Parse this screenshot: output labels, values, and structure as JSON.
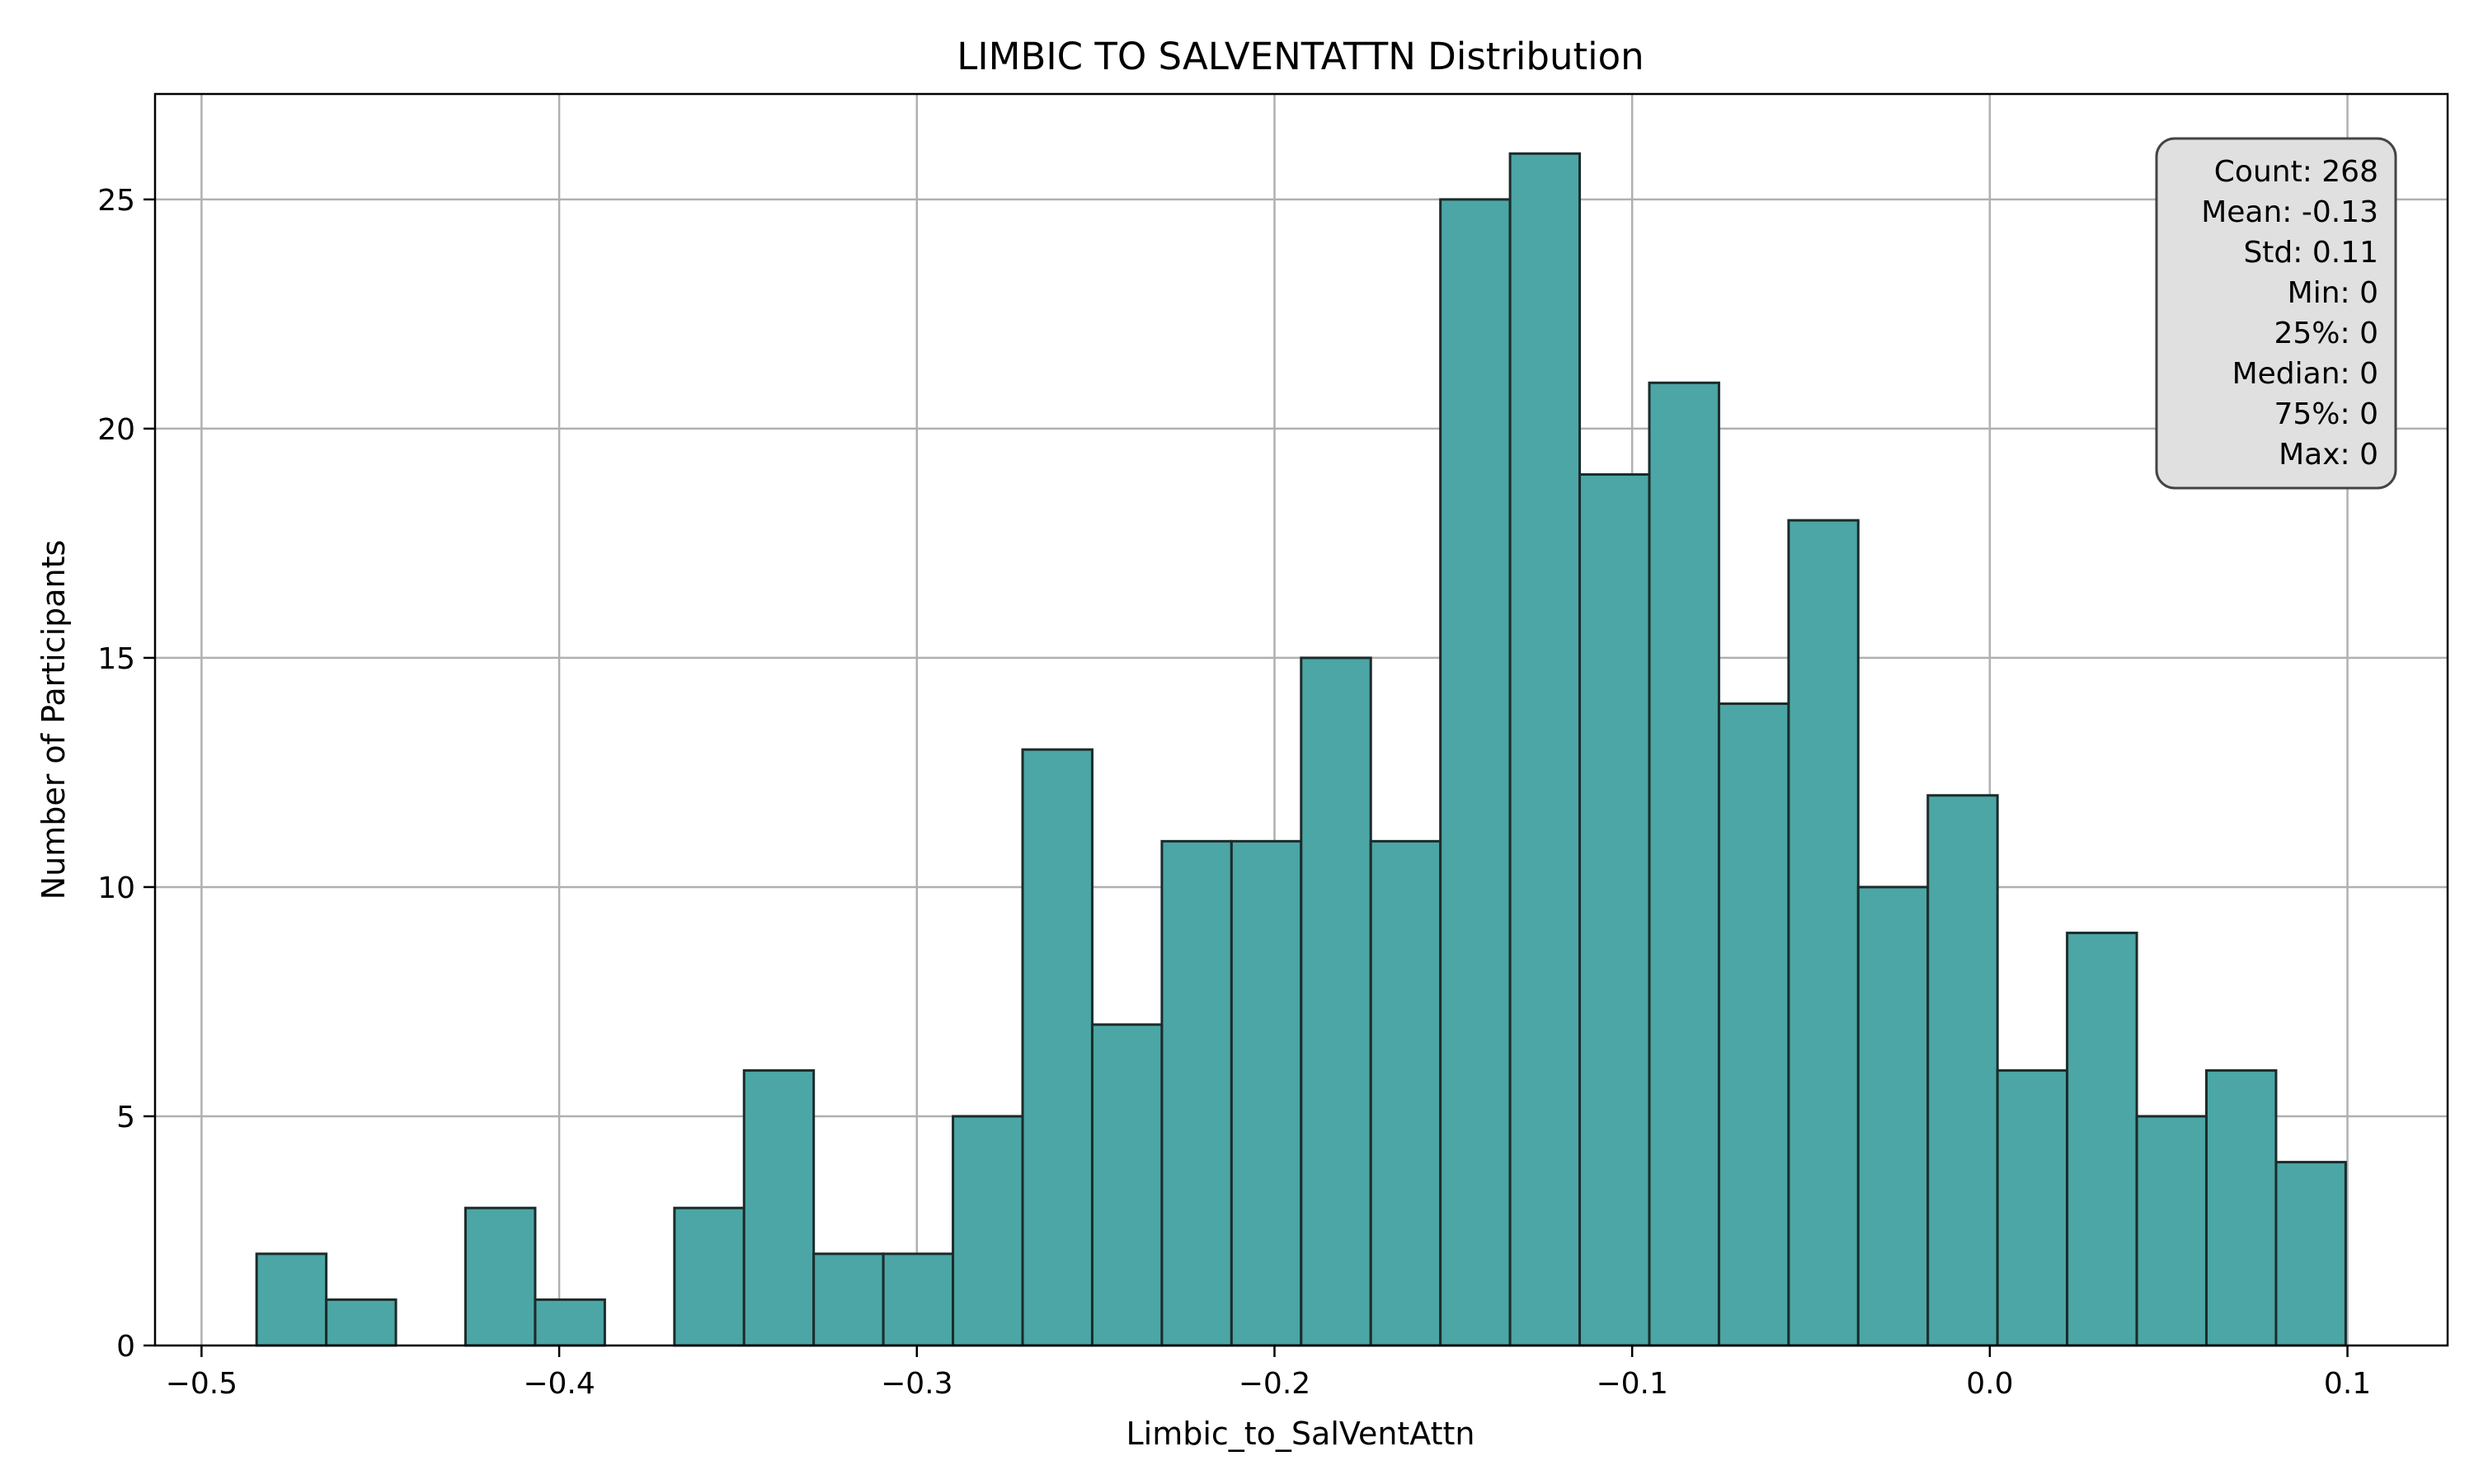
{
  "chart_data": {
    "type": "bar",
    "title": "LIMBIC TO SALVENTATTN Distribution",
    "xlabel": "Limbic_to_SalVentAttn",
    "ylabel": "Number of Participants",
    "xlim": [
      -0.513,
      0.128
    ],
    "ylim": [
      0,
      27.3
    ],
    "grid": true,
    "bar_color": "#4ca6a6",
    "edge_color": "#1c2b2b",
    "bin_start": -0.4846,
    "bin_width": 0.01947,
    "counts": [
      2,
      1,
      0,
      3,
      1,
      0,
      3,
      6,
      2,
      2,
      5,
      13,
      7,
      11,
      11,
      15,
      11,
      25,
      26,
      19,
      21,
      14,
      18,
      10,
      12,
      6,
      9,
      5,
      6,
      4
    ],
    "xticks": [
      {
        "value": -0.5,
        "label": "−0.5"
      },
      {
        "value": -0.4,
        "label": "−0.4"
      },
      {
        "value": -0.3,
        "label": "−0.3"
      },
      {
        "value": -0.2,
        "label": "−0.2"
      },
      {
        "value": -0.1,
        "label": "−0.1"
      },
      {
        "value": 0.0,
        "label": "0.0"
      },
      {
        "value": 0.1,
        "label": "0.1"
      }
    ],
    "yticks": [
      {
        "value": 0,
        "label": "0"
      },
      {
        "value": 5,
        "label": "5"
      },
      {
        "value": 10,
        "label": "10"
      },
      {
        "value": 15,
        "label": "15"
      },
      {
        "value": 20,
        "label": "20"
      },
      {
        "value": 25,
        "label": "25"
      }
    ],
    "stats_box": {
      "placement": "top-right",
      "lines": [
        "Count: 268",
        "Mean: -0.13",
        "Std: 0.11",
        "Min: 0",
        "25%: 0",
        "Median: 0",
        "75%: 0",
        "Max: 0"
      ]
    }
  }
}
